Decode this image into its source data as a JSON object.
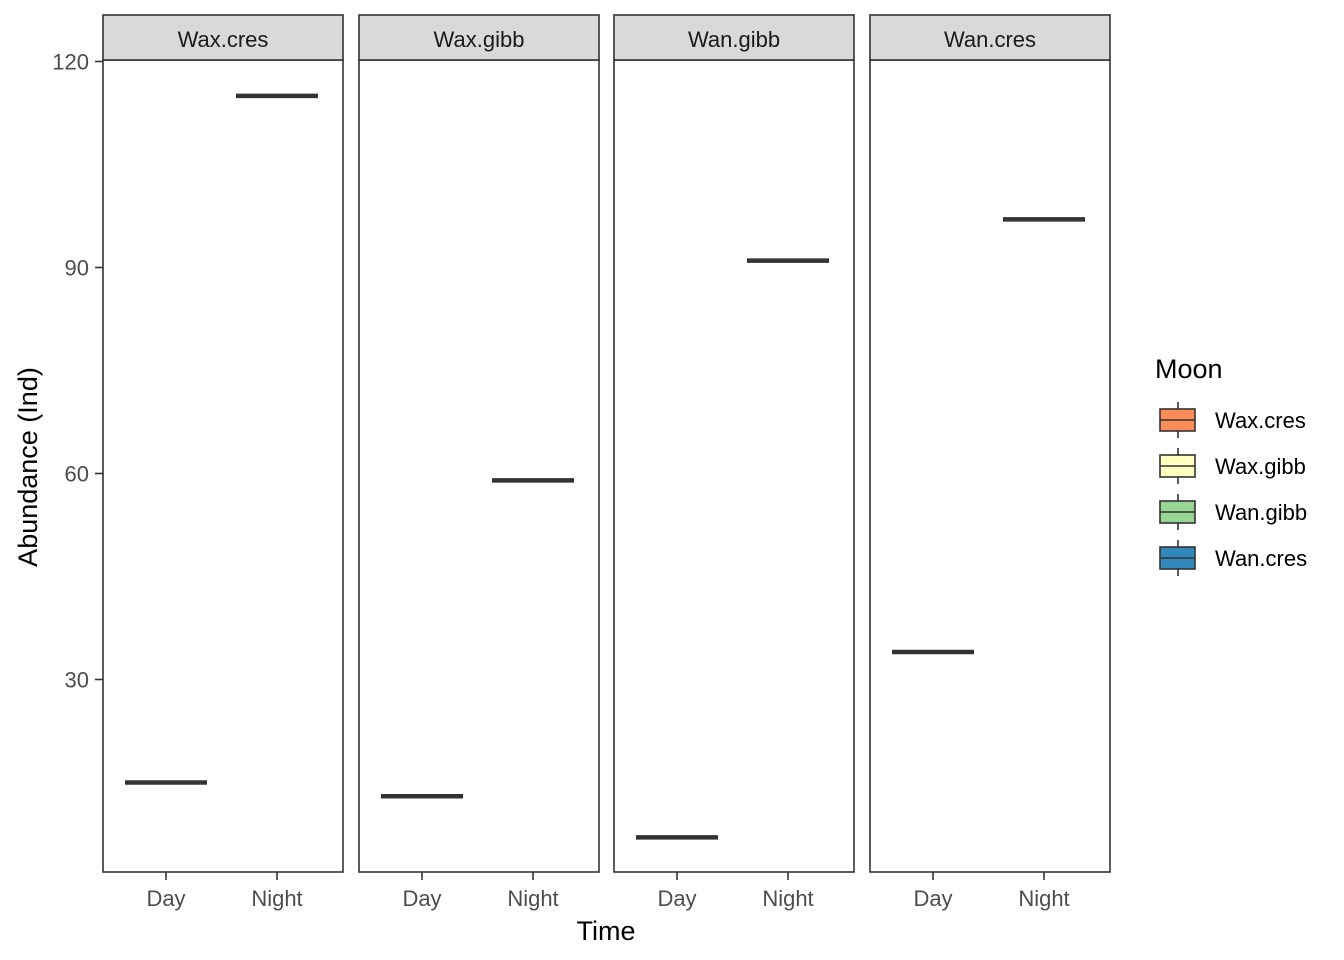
{
  "chart_data": {
    "type": "box",
    "facet_by": "Moon",
    "panels": [
      {
        "name": "Wax.cres",
        "categories": [
          "Day",
          "Night"
        ],
        "values": [
          15,
          115
        ]
      },
      {
        "name": "Wax.gibb",
        "categories": [
          "Day",
          "Night"
        ],
        "values": [
          13,
          59
        ]
      },
      {
        "name": "Wan.gibb",
        "categories": [
          "Day",
          "Night"
        ],
        "values": [
          7,
          91
        ]
      },
      {
        "name": "Wan.cres",
        "categories": [
          "Day",
          "Night"
        ],
        "values": [
          34,
          97
        ]
      }
    ],
    "xlabel": "Time",
    "ylabel": "Abundance (Ind)",
    "yticks": [
      30,
      60,
      90,
      120
    ],
    "ylim": [
      2,
      120
    ],
    "grid": false,
    "legend": {
      "title": "Moon",
      "placement": "right",
      "entries": [
        {
          "label": "Wax.cres",
          "color": "#fc8d59"
        },
        {
          "label": "Wax.gibb",
          "color": "#ffffbf"
        },
        {
          "label": "Wan.gibb",
          "color": "#99d594"
        },
        {
          "label": "Wan.cres",
          "color": "#3288bd"
        }
      ]
    },
    "colors": {
      "strip_fill": "#d9d9d9",
      "panel_border": "#333333",
      "median_line": "#333333",
      "tick": "#333333"
    }
  }
}
